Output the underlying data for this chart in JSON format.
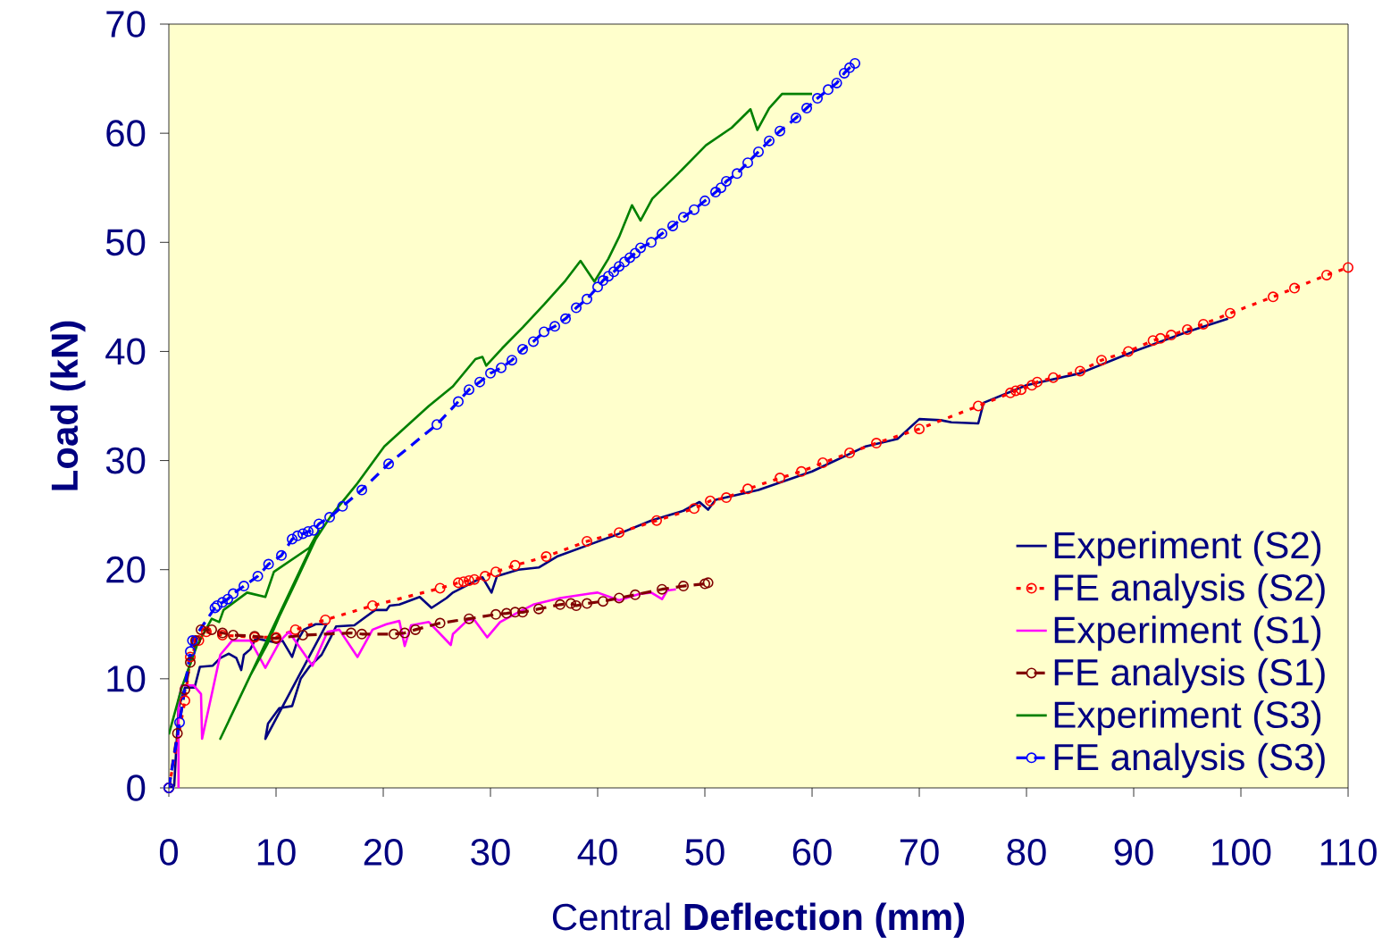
{
  "chart_data": {
    "type": "line",
    "xlabel": "Central **Deflection (mm)**",
    "ylabel": "Load (kN)",
    "xlim": [
      0,
      110
    ],
    "ylim": [
      0,
      70
    ],
    "xticks": [
      0,
      10,
      20,
      30,
      40,
      50,
      60,
      70,
      80,
      90,
      100,
      110
    ],
    "yticks": [
      0,
      10,
      20,
      30,
      40,
      50,
      60,
      70
    ],
    "legend": "bottom right",
    "series": [
      {
        "name": "Experiment (S2)",
        "color": "#000080",
        "marker": "none",
        "line_style": "solid",
        "x": [
          0,
          0.5,
          0.9,
          1.5,
          2.4,
          2.9,
          4.1,
          4.8,
          5.6,
          6.3,
          6.75,
          7.0,
          7.6,
          8.1,
          10.1,
          10.6,
          11.5,
          12.0,
          12.6,
          13.7,
          14.7,
          9.0,
          9.25,
          10.3,
          11.5,
          12.3,
          13.1,
          14.25,
          15.1,
          15.6,
          17.3,
          18.4,
          19.25,
          20.3,
          20.6,
          21.5,
          23.4,
          24.5,
          25.9,
          26.5,
          29.25,
          30.1,
          30.6,
          32.6,
          34.5,
          36.2,
          39.25,
          42,
          45,
          48,
          49.5,
          50.3,
          51,
          55,
          60,
          65,
          68,
          70,
          72,
          73,
          75.5,
          76,
          80,
          85,
          90,
          95,
          98.8
        ],
        "values": [
          0,
          0.2,
          7.3,
          9.2,
          9.2,
          11.1,
          11.2,
          11.9,
          12.3,
          11.9,
          10.8,
          12.2,
          12.7,
          13.7,
          13.3,
          13.5,
          12.0,
          13.5,
          14.5,
          15.0,
          15.0,
          4.5,
          5.9,
          7.3,
          7.5,
          10.0,
          11.1,
          12.2,
          13.8,
          14.8,
          14.9,
          15.7,
          16.3,
          16.3,
          16.7,
          16.8,
          17.5,
          16.5,
          17.4,
          17.9,
          19.3,
          17.9,
          19.4,
          20.0,
          20.2,
          21.2,
          22.3,
          23.3,
          24.5,
          25.4,
          26.2,
          25.5,
          26.4,
          27.3,
          29.0,
          31.3,
          32.0,
          33.8,
          33.7,
          33.5,
          33.4,
          35.3,
          36.9,
          38.0,
          40.0,
          41.8,
          43.0
        ]
      },
      {
        "name": "FE analysis (S2)",
        "color": "#ff0000",
        "marker": "circle",
        "line_style": "dotted",
        "x": [
          0,
          1.5,
          2,
          2.8,
          3.5,
          5,
          8,
          10,
          11.8,
          14.6,
          19,
          25.3,
          27,
          27.5,
          28,
          28.5,
          29.5,
          30.5,
          32.3,
          35.2,
          39,
          42,
          45.5,
          49,
          50.5,
          52,
          54,
          57,
          59,
          61,
          63.5,
          66,
          70,
          75.5,
          78.5,
          79,
          79.5,
          80.5,
          81,
          82.5,
          85,
          87,
          89.5,
          91.8,
          92.5,
          93.5,
          95,
          96.5,
          99,
          103,
          105,
          108,
          110
        ],
        "values": [
          0,
          8,
          12,
          13.5,
          14.3,
          14,
          13.8,
          13.8,
          14.5,
          15.4,
          16.7,
          18.3,
          18.8,
          18.9,
          19.0,
          19.1,
          19.4,
          19.8,
          20.4,
          21.2,
          22.6,
          23.4,
          24.5,
          25.6,
          26.3,
          26.6,
          27.4,
          28.4,
          29.0,
          29.8,
          30.7,
          31.6,
          32.9,
          35.0,
          36.2,
          36.4,
          36.5,
          36.9,
          37.2,
          37.6,
          38.2,
          39.2,
          40.0,
          41.0,
          41.2,
          41.5,
          42.0,
          42.5,
          43.5,
          45.0,
          45.8,
          47.0,
          47.7
        ]
      },
      {
        "name": "Experiment (S1)",
        "color": "#ff00ff",
        "marker": "none",
        "line_style": "solid",
        "x": [
          0.9,
          0.9,
          1.2,
          2.3,
          3.0,
          3.1,
          4.8,
          5.9,
          7.6,
          9.0,
          10.4,
          11.2,
          13.4,
          14.8,
          15.9,
          17.6,
          19.0,
          20.3,
          21.5,
          22.0,
          22.6,
          24.25,
          26.3,
          26.5,
          27.9,
          28.5,
          29.7,
          30.9,
          32.6,
          34.0,
          36.5,
          39.25,
          40,
          42,
          44,
          45,
          46,
          46.5,
          47.3
        ],
        "values": [
          0,
          8.0,
          9.4,
          9.4,
          8.6,
          4.5,
          12.2,
          13.5,
          13.5,
          11.0,
          13.5,
          14.3,
          11.2,
          14.3,
          14.5,
          12.0,
          14.5,
          15.0,
          15.3,
          13.0,
          14.9,
          15.2,
          13.1,
          14.1,
          15.4,
          15.4,
          13.8,
          15.2,
          16.1,
          16.8,
          17.4,
          17.8,
          17.9,
          17.2,
          17.8,
          17.9,
          17.3,
          18.1,
          18.2
        ]
      },
      {
        "name": "FE analysis (S1)",
        "color": "#800000",
        "marker": "circle",
        "line_style": "dashed",
        "x": [
          0,
          0.8,
          1.5,
          2,
          2.5,
          3,
          4,
          5,
          6,
          8,
          10,
          12.5,
          17,
          18,
          21,
          22,
          23,
          25.3,
          28,
          30.5,
          31.5,
          32.3,
          33,
          34.5,
          36.5,
          37.5,
          38,
          39,
          40.5,
          42,
          43.5,
          46,
          48,
          50,
          50.3
        ],
        "values": [
          0,
          5,
          9,
          11.5,
          13.5,
          14.5,
          14.5,
          14.2,
          14.0,
          13.9,
          13.7,
          14.0,
          14.2,
          14.1,
          14.1,
          14.2,
          14.5,
          15.1,
          15.5,
          15.9,
          16.0,
          16.1,
          16.1,
          16.4,
          16.8,
          16.9,
          16.7,
          16.9,
          17.1,
          17.4,
          17.7,
          18.2,
          18.5,
          18.7,
          18.8
        ]
      },
      {
        "name": "Experiment (S3)",
        "color": "#008000",
        "marker": "none",
        "line_style": "solid",
        "x": [
          0,
          1.2,
          2.6,
          4.0,
          4.7,
          5.1,
          7.3,
          9.0,
          9.8,
          13.1,
          14.0,
          4.8,
          7.6,
          9.25,
          10.3,
          11.75,
          13.7,
          15.1,
          17.5,
          20.1,
          22,
          24.25,
          26.5,
          28.6,
          29.25,
          29.6,
          31.1,
          33,
          35,
          37,
          38.4,
          39.7,
          41,
          42,
          43.2,
          44,
          45.1,
          47.5,
          50.1,
          52.5,
          54.25,
          54.9,
          56,
          57.2,
          59,
          60
        ],
        "values": [
          4.9,
          9.2,
          13.0,
          15.5,
          15.2,
          16.3,
          17.9,
          17.5,
          19.8,
          22.0,
          23.6,
          4.5,
          10.3,
          13.3,
          15.7,
          18.7,
          22.8,
          24.9,
          27.8,
          31.3,
          33.0,
          35.0,
          36.8,
          39.3,
          39.5,
          38.7,
          40.3,
          42.2,
          44.3,
          46.5,
          48.3,
          46.4,
          48.5,
          50.5,
          53.4,
          52.0,
          54.0,
          56.3,
          58.9,
          60.5,
          62.2,
          60.3,
          62.3,
          63.6,
          63.6,
          63.6
        ]
      },
      {
        "name": "FE analysis (S3)",
        "color": "#0000ff",
        "marker": "circle",
        "line_style": "dashed",
        "x": [
          0,
          1,
          2,
          2.2,
          4.3,
          4.5,
          5,
          5.5,
          6,
          7,
          8.3,
          9.3,
          10.5,
          11.5,
          12,
          12.5,
          13,
          13.5,
          14,
          15,
          16.2,
          18,
          20.5,
          25,
          27,
          28,
          29,
          30,
          31,
          32,
          33,
          34,
          35,
          36,
          37,
          38,
          39,
          40,
          40.5,
          41,
          41.5,
          42,
          42.5,
          43,
          43.5,
          44,
          45,
          46,
          47,
          48,
          49,
          50,
          51,
          51.5,
          52,
          53,
          54,
          55,
          56,
          57,
          58.5,
          59.5,
          60.5,
          61.5,
          62.3,
          63,
          63.5,
          64
        ],
        "values": [
          0,
          6,
          12.5,
          13.5,
          16.5,
          16.7,
          17.0,
          17.3,
          17.8,
          18.5,
          19.4,
          20.5,
          21.3,
          22.8,
          23.1,
          23.3,
          23.5,
          23.6,
          24.2,
          24.8,
          25.8,
          27.3,
          29.7,
          33.3,
          35.4,
          36.5,
          37.2,
          38.0,
          38.5,
          39.2,
          40.2,
          40.9,
          41.8,
          42.3,
          43.0,
          44.0,
          44.8,
          45.9,
          46.5,
          46.9,
          47.3,
          47.8,
          48.2,
          48.6,
          49.0,
          49.5,
          50.0,
          50.8,
          51.5,
          52.3,
          53.0,
          53.8,
          54.6,
          55.0,
          55.6,
          56.3,
          57.3,
          58.3,
          59.3,
          60.2,
          61.4,
          62.3,
          63.2,
          64.0,
          64.6,
          65.5,
          66.0,
          66.4
        ]
      }
    ]
  }
}
